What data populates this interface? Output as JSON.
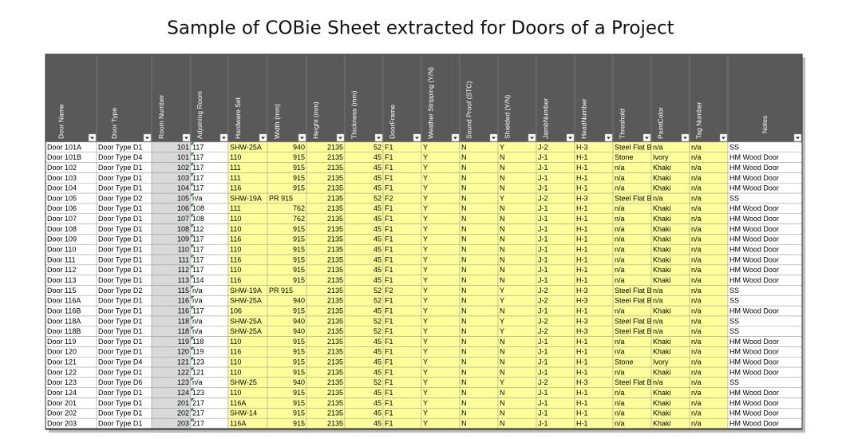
{
  "title": "Sample of COBie Sheet extracted for Doors of a Project",
  "table": {
    "headers": [
      "Door Name",
      "Door Type",
      "Room Number",
      "Adjoining Room",
      "Hardware Set",
      "Width (mm)",
      "Height (mm)",
      "Thickness (mm)",
      "DoorFrame",
      "Weather Stripping (Y/N)",
      "Sound Proof (STC)",
      "Shielded (Y/N)",
      "JambNumber",
      "HeadNumber",
      "Threshold",
      "PaintColor",
      "Tag Number",
      "Notes"
    ],
    "rows": [
      [
        "Door 101A",
        "Door Type D1",
        "101",
        "117",
        "SHW-25A",
        "940",
        "2135",
        "52",
        "F1",
        "Y",
        "N",
        "Y",
        "J-2",
        "H-3",
        "Steel Flat Ba",
        "n/a",
        "n/a",
        "SS"
      ],
      [
        "Door 101B",
        "Door Type D4",
        "101",
        "117",
        "110",
        "915",
        "2135",
        "45",
        "F1",
        "Y",
        "N",
        "N",
        "J-1",
        "H-1",
        "Stone",
        "Ivory",
        "n/a",
        "HM Wood Door"
      ],
      [
        "Door 102",
        "Door Type D1",
        "102",
        "117",
        "111",
        "915",
        "2135",
        "45",
        "F1",
        "Y",
        "N",
        "N",
        "J-1",
        "H-1",
        "n/a",
        "Khaki",
        "n/a",
        "HM Wood Door"
      ],
      [
        "Door 103",
        "Door Type D1",
        "103",
        "117",
        "111",
        "915",
        "2135",
        "45",
        "F1",
        "Y",
        "N",
        "N",
        "J-1",
        "H-1",
        "n/a",
        "Khaki",
        "n/a",
        "HM Wood Door"
      ],
      [
        "Door 104",
        "Door Type D1",
        "104",
        "117",
        "116",
        "915",
        "2135",
        "45",
        "F1",
        "Y",
        "N",
        "N",
        "J-1",
        "H-1",
        "n/a",
        "Khaki",
        "n/a",
        "HM Wood Door"
      ],
      [
        "Door 105",
        "Door Type D2",
        "105",
        "n/a",
        "SHW-19A",
        "PR 915",
        "2135",
        "52",
        "F2",
        "Y",
        "N",
        "Y",
        "J-2",
        "H-3",
        "Steel Flat Ba",
        "n/a",
        "n/a",
        "SS"
      ],
      [
        "Door 106",
        "Door Type D1",
        "106",
        "108",
        "111",
        "762",
        "2135",
        "45",
        "F1",
        "Y",
        "N",
        "N",
        "J-1",
        "H-1",
        "n/a",
        "Khaki",
        "n/a",
        "HM Wood Door"
      ],
      [
        "Door 107",
        "Door Type D1",
        "107",
        "108",
        "110",
        "762",
        "2135",
        "45",
        "F1",
        "Y",
        "N",
        "N",
        "J-1",
        "H-1",
        "n/a",
        "Khaki",
        "n/a",
        "HM Wood Door"
      ],
      [
        "Door 108",
        "Door Type D1",
        "108",
        "112",
        "110",
        "915",
        "2135",
        "45",
        "F1",
        "Y",
        "N",
        "N",
        "J-1",
        "H-1",
        "n/a",
        "Khaki",
        "n/a",
        "HM Wood Door"
      ],
      [
        "Door 109",
        "Door Type D1",
        "109",
        "117",
        "116",
        "915",
        "2135",
        "45",
        "F1",
        "Y",
        "N",
        "N",
        "J-1",
        "H-1",
        "n/a",
        "Khaki",
        "n/a",
        "HM Wood Door"
      ],
      [
        "Door 110",
        "Door Type D1",
        "110",
        "117",
        "110",
        "915",
        "2135",
        "45",
        "F1",
        "Y",
        "N",
        "N",
        "J-1",
        "H-1",
        "n/a",
        "Khaki",
        "n/a",
        "HM Wood Door"
      ],
      [
        "Door 111",
        "Door Type D1",
        "111",
        "117",
        "116",
        "915",
        "2135",
        "45",
        "F1",
        "Y",
        "N",
        "N",
        "J-1",
        "H-1",
        "n/a",
        "Khaki",
        "n/a",
        "HM Wood Door"
      ],
      [
        "Door 112",
        "Door Type D1",
        "112",
        "117",
        "110",
        "915",
        "2135",
        "45",
        "F1",
        "Y",
        "N",
        "N",
        "J-1",
        "H-1",
        "n/a",
        "Khaki",
        "n/a",
        "HM Wood Door"
      ],
      [
        "Door 113",
        "Door Type D1",
        "113",
        "114",
        "116",
        "915",
        "2135",
        "45",
        "F1",
        "Y",
        "N",
        "N",
        "J-1",
        "H-1",
        "n/a",
        "Khaki",
        "n/a",
        "HM Wood Door"
      ],
      [
        "Door 115",
        "Door Type D2",
        "115",
        "n/a",
        "SHW-19A",
        "PR 915",
        "2135",
        "52",
        "F2",
        "Y",
        "N",
        "Y",
        "J-2",
        "H-3",
        "Steel Flat Ba",
        "n/a",
        "n/a",
        "SS"
      ],
      [
        "Door 116A",
        "Door Type D1",
        "116",
        "n/a",
        "SHW-25A",
        "940",
        "2135",
        "52",
        "F1",
        "Y",
        "N",
        "Y",
        "J-2",
        "H-3",
        "Steel Flat Ba",
        "n/a",
        "n/a",
        "SS"
      ],
      [
        "Door 116B",
        "Door Type D1",
        "116",
        "117",
        "106",
        "915",
        "2135",
        "45",
        "F1",
        "Y",
        "N",
        "N",
        "J-1",
        "H-1",
        "n/a",
        "Khaki",
        "n/a",
        "HM Wood Door"
      ],
      [
        "Door 118A",
        "Door Type D1",
        "118",
        "n/a",
        "SHW-25A",
        "940",
        "2135",
        "52",
        "F1",
        "Y",
        "N",
        "Y",
        "J-2",
        "H-3",
        "Steel Flat Ba",
        "n/a",
        "n/a",
        "SS"
      ],
      [
        "Door 118B",
        "Door Type D1",
        "118",
        "n/a",
        "SHW-25A",
        "940",
        "2135",
        "52",
        "F1",
        "Y",
        "N",
        "Y",
        "J-2",
        "H-3",
        "Steel Flat Ba",
        "n/a",
        "n/a",
        "SS"
      ],
      [
        "Door 119",
        "Door Type D1",
        "119",
        "118",
        "110",
        "915",
        "2135",
        "45",
        "F1",
        "Y",
        "N",
        "N",
        "J-1",
        "H-1",
        "n/a",
        "Khaki",
        "n/a",
        "HM Wood Door"
      ],
      [
        "Door 120",
        "Door Type D1",
        "120",
        "119",
        "116",
        "915",
        "2135",
        "45",
        "F1",
        "Y",
        "N",
        "N",
        "J-1",
        "H-1",
        "n/a",
        "Khaki",
        "n/a",
        "HM Wood Door"
      ],
      [
        "Door 121",
        "Door Type D4",
        "121",
        "123",
        "110",
        "915",
        "2135",
        "45",
        "F1",
        "Y",
        "N",
        "N",
        "J-1",
        "H-1",
        "Stone",
        "Ivory",
        "n/a",
        "HM Wood Door"
      ],
      [
        "Door 122",
        "Door Type D1",
        "122",
        "121",
        "110",
        "915",
        "2135",
        "45",
        "F1",
        "Y",
        "N",
        "N",
        "J-1",
        "H-1",
        "n/a",
        "Khaki",
        "n/a",
        "HM Wood Door"
      ],
      [
        "Door 123",
        "Door Type D6",
        "123",
        "n/a",
        "SHW-25",
        "940",
        "2135",
        "52",
        "F1",
        "Y",
        "N",
        "Y",
        "J-2",
        "H-3",
        "Steel Flat Ba",
        "n/a",
        "n/a",
        "SS"
      ],
      [
        "Door 124",
        "Door Type D1",
        "124",
        "123",
        "110",
        "915",
        "2135",
        "45",
        "F1",
        "Y",
        "N",
        "N",
        "J-1",
        "H-1",
        "n/a",
        "Khaki",
        "n/a",
        "HM Wood Door"
      ],
      [
        "Door 201",
        "Door Type D1",
        "201",
        "217",
        "116A",
        "915",
        "2135",
        "45",
        "F1",
        "Y",
        "N",
        "N",
        "J-1",
        "H-1",
        "n/a",
        "Khaki",
        "n/a",
        "HM Wood Door"
      ],
      [
        "Door 202",
        "Door Type D1",
        "202",
        "217",
        "SHW-14",
        "915",
        "2135",
        "45",
        "F1",
        "Y",
        "N",
        "N",
        "J-1",
        "H-1",
        "n/a",
        "Khaki",
        "n/a",
        "HM Wood Door"
      ],
      [
        "Door 203",
        "Door Type D1",
        "203",
        "217",
        "116A",
        "915",
        "2135",
        "45",
        "F1",
        "Y",
        "N",
        "N",
        "J-1",
        "H-1",
        "n/a",
        "Khaki",
        "n/a",
        "HM Wood Door"
      ]
    ]
  }
}
